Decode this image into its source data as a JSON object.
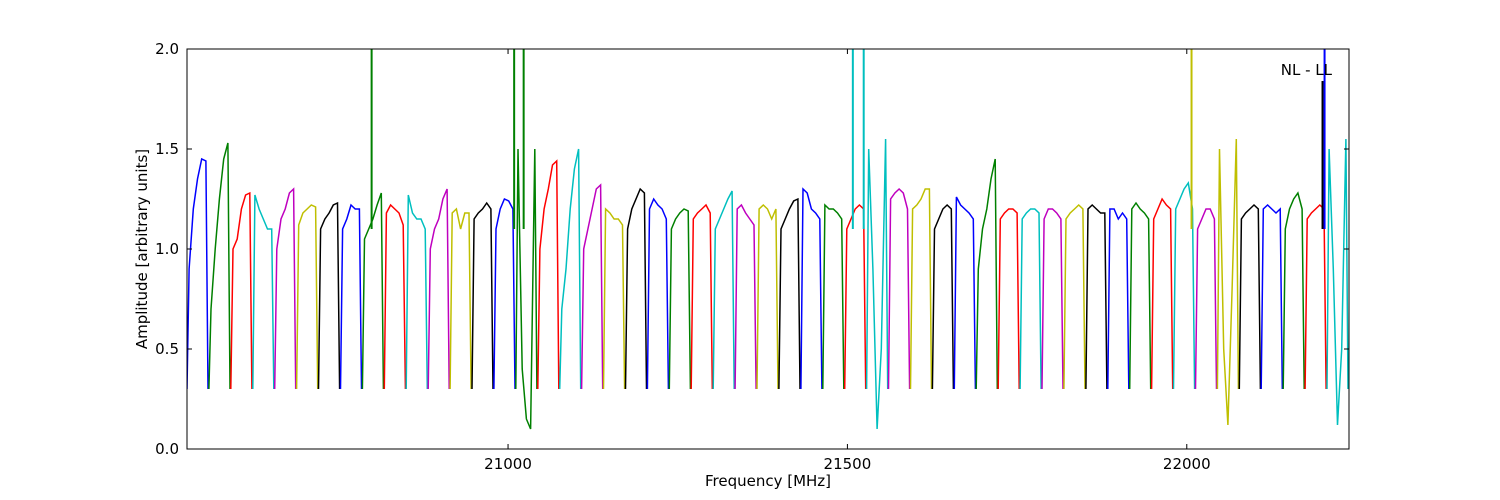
{
  "chart_data": {
    "type": "line",
    "xlabel": "Frequency [MHz]",
    "ylabel": "Amplitude [arbitrary units]",
    "annotation": "NL - LL",
    "xlim": [
      20527,
      22239
    ],
    "ylim": [
      0.0,
      2.0
    ],
    "x_ticks": [
      21000,
      21500,
      22000
    ],
    "x_tick_labels": [
      "21000",
      "21500",
      "22000"
    ],
    "y_ticks": [
      0.0,
      0.5,
      1.0,
      1.5,
      2.0
    ],
    "y_tick_labels": [
      "0.0",
      "0.5",
      "1.0",
      "1.5",
      "2.0"
    ],
    "grid": false,
    "colors": [
      "#0000ff",
      "#008000",
      "#ff0000",
      "#00bfbf",
      "#bf00bf",
      "#bfbf00",
      "#000000"
    ],
    "segment_start": 20527,
    "segment_spacing": 32.3,
    "segment_width": 31,
    "segments": [
      [
        0.9,
        1.2,
        1.35,
        1.45,
        1.44
      ],
      [
        0.7,
        1.0,
        1.25,
        1.45,
        1.53
      ],
      [
        1.0,
        1.05,
        1.2,
        1.27,
        1.28
      ],
      [
        1.27,
        1.2,
        1.15,
        1.1,
        1.1
      ],
      [
        1.0,
        1.15,
        1.2,
        1.28,
        1.3
      ],
      [
        1.12,
        1.18,
        1.2,
        1.22,
        1.21
      ],
      [
        1.1,
        1.15,
        1.18,
        1.22,
        1.23
      ],
      [
        1.1,
        1.15,
        1.22,
        1.2,
        1.2
      ],
      [
        1.05,
        1.1,
        1.15,
        1.22,
        1.28
      ],
      [
        1.18,
        1.22,
        1.2,
        1.18,
        1.12
      ],
      [
        1.27,
        1.18,
        1.15,
        1.15,
        1.1
      ],
      [
        1.0,
        1.1,
        1.15,
        1.25,
        1.3
      ],
      [
        1.18,
        1.2,
        1.1,
        1.18,
        1.18
      ],
      [
        1.15,
        1.18,
        1.2,
        1.23,
        1.2
      ],
      [
        1.1,
        1.2,
        1.25,
        1.24,
        1.2
      ],
      [
        1.5,
        0.4,
        0.15,
        0.1,
        1.5
      ],
      [
        1.0,
        1.2,
        1.3,
        1.42,
        1.44
      ],
      [
        0.7,
        0.9,
        1.2,
        1.4,
        1.5
      ],
      [
        1.0,
        1.1,
        1.2,
        1.3,
        1.32
      ],
      [
        1.2,
        1.18,
        1.15,
        1.15,
        1.12
      ],
      [
        1.1,
        1.2,
        1.25,
        1.3,
        1.28
      ],
      [
        1.2,
        1.25,
        1.22,
        1.2,
        1.15
      ],
      [
        1.1,
        1.15,
        1.18,
        1.2,
        1.19
      ],
      [
        1.15,
        1.18,
        1.2,
        1.22,
        1.18
      ],
      [
        1.1,
        1.15,
        1.2,
        1.25,
        1.29
      ],
      [
        1.2,
        1.22,
        1.18,
        1.15,
        1.12
      ],
      [
        1.2,
        1.22,
        1.2,
        1.15,
        1.2
      ],
      [
        1.1,
        1.15,
        1.2,
        1.24,
        1.25
      ],
      [
        1.3,
        1.28,
        1.2,
        1.18,
        1.15
      ],
      [
        1.22,
        1.2,
        1.2,
        1.18,
        1.15
      ],
      [
        1.1,
        1.15,
        1.2,
        1.22,
        1.2
      ],
      [
        1.5,
        0.9,
        0.1,
        0.5,
        1.55
      ],
      [
        1.25,
        1.28,
        1.3,
        1.28,
        1.2
      ],
      [
        1.2,
        1.22,
        1.25,
        1.3,
        1.3
      ],
      [
        1.1,
        1.15,
        1.2,
        1.22,
        1.2
      ],
      [
        1.26,
        1.22,
        1.2,
        1.18,
        1.15
      ],
      [
        0.9,
        1.1,
        1.2,
        1.35,
        1.45
      ],
      [
        1.15,
        1.18,
        1.2,
        1.2,
        1.18
      ],
      [
        1.15,
        1.18,
        1.2,
        1.2,
        1.18
      ],
      [
        1.15,
        1.2,
        1.2,
        1.18,
        1.15
      ],
      [
        1.15,
        1.18,
        1.2,
        1.22,
        1.2
      ],
      [
        1.2,
        1.22,
        1.2,
        1.18,
        1.18
      ],
      [
        1.2,
        1.2,
        1.15,
        1.18,
        1.15
      ],
      [
        1.2,
        1.23,
        1.2,
        1.18,
        1.15
      ],
      [
        1.15,
        1.2,
        1.25,
        1.22,
        1.2
      ],
      [
        1.2,
        1.25,
        1.3,
        1.33,
        1.2
      ],
      [
        1.1,
        1.15,
        1.2,
        1.2,
        1.15
      ],
      [
        1.5,
        0.5,
        0.12,
        0.8,
        1.55
      ],
      [
        1.15,
        1.18,
        1.2,
        1.22,
        1.2
      ],
      [
        1.2,
        1.22,
        1.2,
        1.18,
        1.2
      ],
      [
        1.1,
        1.2,
        1.25,
        1.28,
        1.2
      ],
      [
        1.15,
        1.18,
        1.2,
        1.22,
        1.2
      ],
      [
        1.5,
        0.9,
        0.12,
        0.5,
        1.55
      ]
    ],
    "spikes": [
      {
        "x": 20799,
        "y": 2.0,
        "color": "#008000"
      },
      {
        "x": 21009,
        "y": 2.0,
        "color": "#008000"
      },
      {
        "x": 21023,
        "y": 2.0,
        "color": "#008000"
      },
      {
        "x": 21508,
        "y": 2.0,
        "color": "#00bfbf"
      },
      {
        "x": 21524,
        "y": 2.0,
        "color": "#00bfbf"
      },
      {
        "x": 22007,
        "y": 2.0,
        "color": "#bfbf00"
      },
      {
        "x": 22200,
        "y": 1.84,
        "color": "#000000"
      },
      {
        "x": 22203,
        "y": 2.0,
        "color": "#0000ff"
      }
    ]
  }
}
